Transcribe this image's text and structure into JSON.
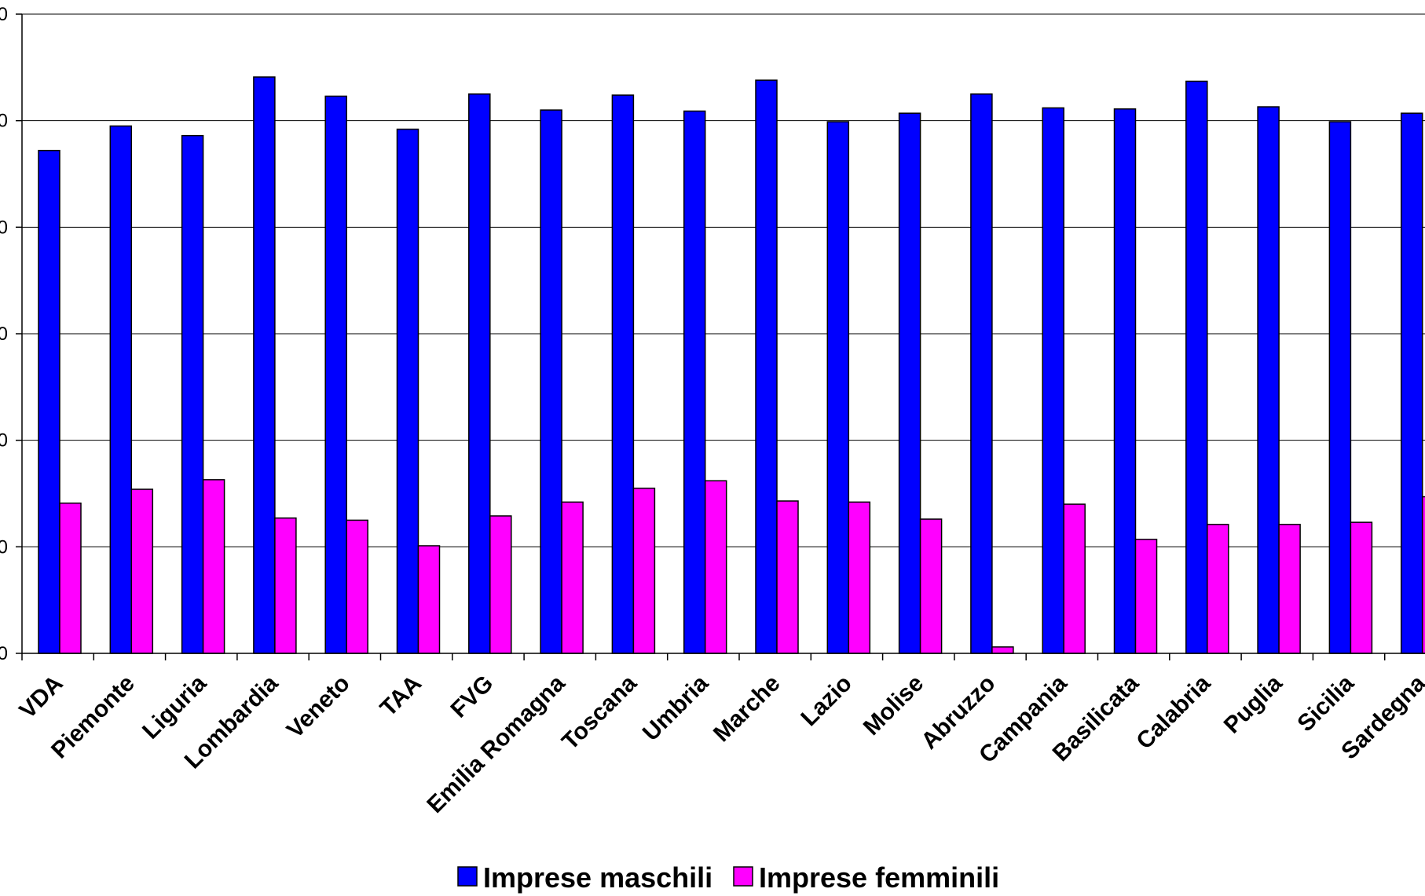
{
  "chart_data": {
    "type": "bar",
    "categories": [
      "VDA",
      "Piemonte",
      "Liguria",
      "Lombardia",
      "Veneto",
      "TAA",
      "FVG",
      "Emilia Romagna",
      "Toscana",
      "Umbria",
      "Marche",
      "Lazio",
      "Molise",
      "Abruzzo",
      "Campania",
      "Basilicata",
      "Calabria",
      "Puglia",
      "Sicilia",
      "Sardegna"
    ],
    "series": [
      {
        "name": "Imprese maschili",
        "color": "#0000ff",
        "values": [
          23.6,
          24.75,
          24.3,
          27.05,
          26.15,
          24.6,
          26.25,
          25.5,
          26.2,
          25.45,
          26.9,
          24.95,
          25.35,
          26.25,
          25.6,
          25.55,
          26.85,
          25.65,
          24.95,
          25.35
        ]
      },
      {
        "name": "Imprese femminili",
        "color": "#ff00ff",
        "values": [
          7.05,
          7.7,
          8.15,
          6.35,
          6.25,
          5.05,
          6.45,
          7.1,
          7.75,
          8.1,
          7.15,
          7.1,
          6.3,
          0.3,
          7.0,
          5.35,
          6.05,
          6.05,
          6.15,
          7.35
        ]
      }
    ],
    "ylim": [
      0,
      30
    ],
    "gridlines": [
      5,
      10,
      15,
      20,
      25,
      30
    ],
    "tick_labels": [
      "0",
      "0",
      "0",
      "0",
      "0",
      "0",
      "0"
    ],
    "grid": true,
    "legend_position": "bottom"
  }
}
